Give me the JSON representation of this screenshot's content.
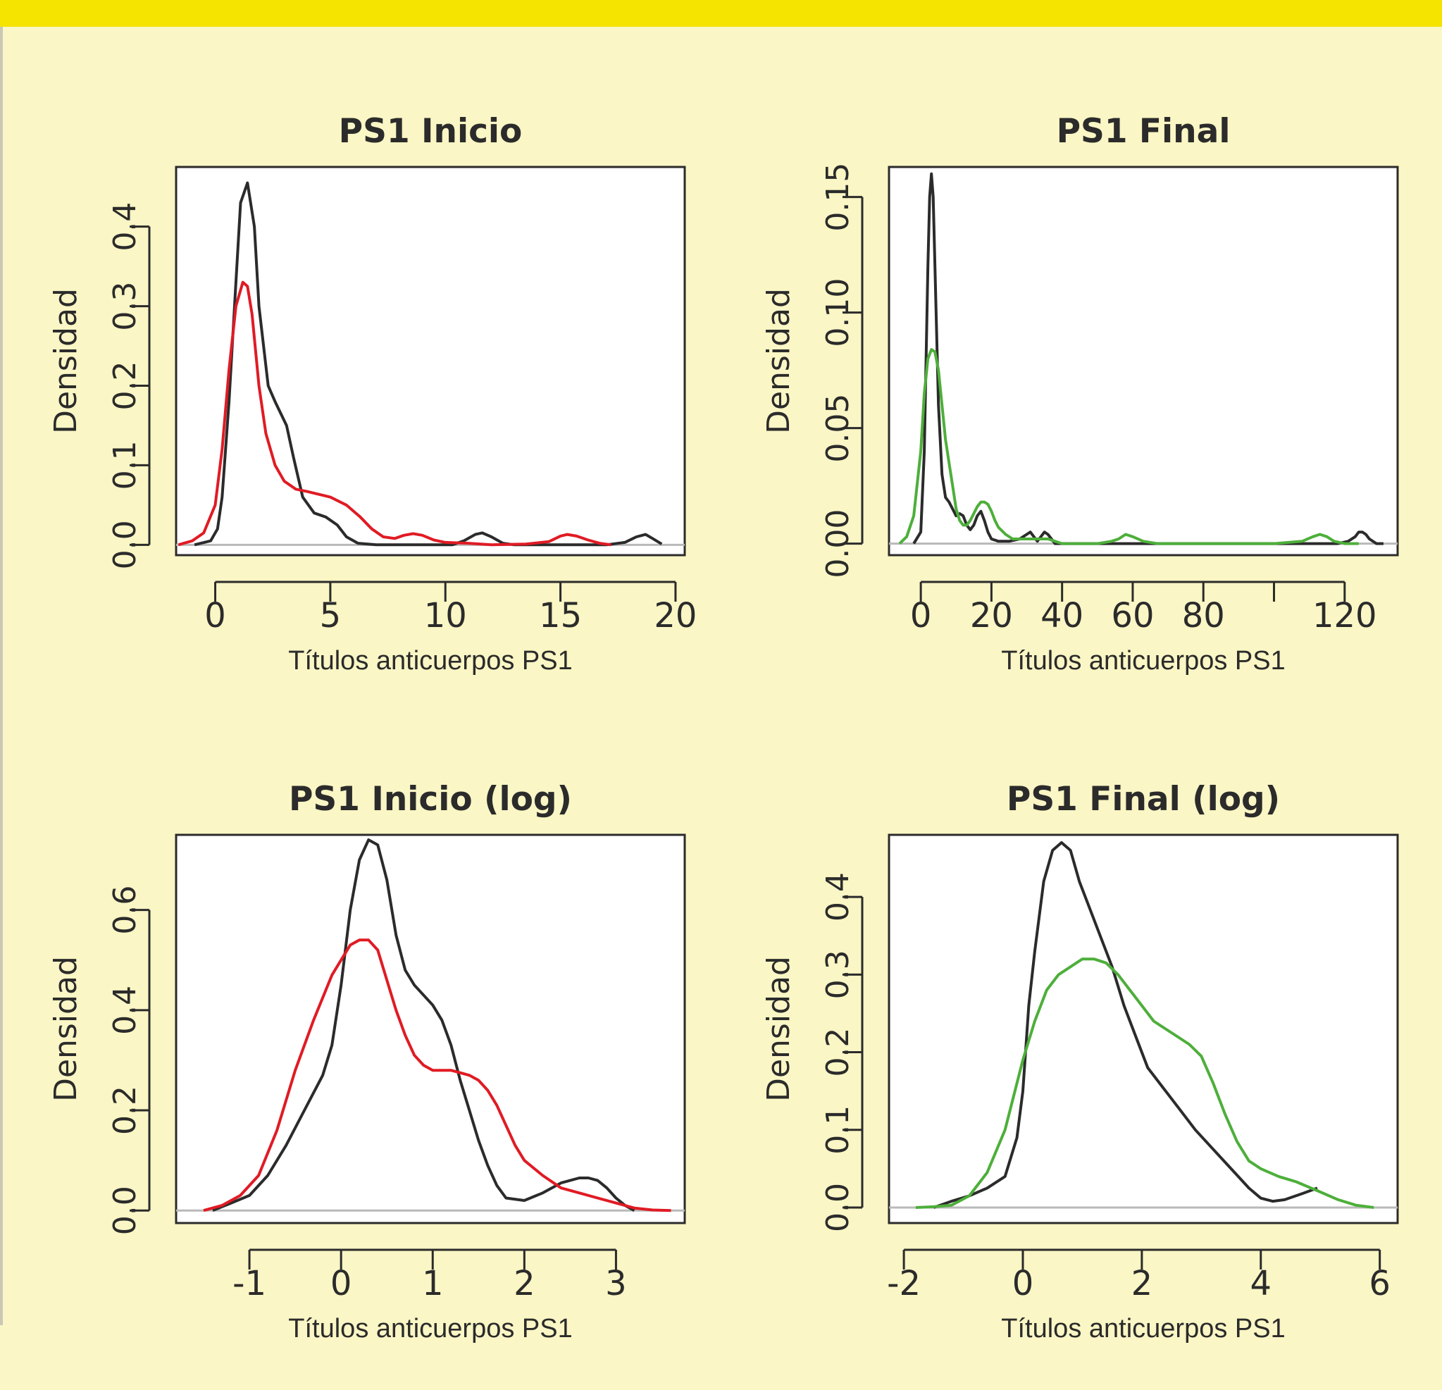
{
  "chart_data": [
    {
      "type": "line",
      "title": "PS1 Inicio",
      "xlabel": "Títulos anticuerpos PS1",
      "ylabel": "Densidad",
      "xlim": [
        -1.7,
        20.4
      ],
      "ylim": [
        -0.013,
        0.475
      ],
      "xticks": [
        0,
        5,
        10,
        15,
        20
      ],
      "xtick_labels": [
        "0",
        "5",
        "10",
        "15",
        "20"
      ],
      "yticks": [
        0.0,
        0.1,
        0.2,
        0.3,
        0.4
      ],
      "ytick_labels": [
        "0.0",
        "0.1",
        "0.2",
        "0.3",
        "0.4"
      ],
      "baseline": 0,
      "grid": false,
      "series": [
        {
          "color": "#2b2b2b",
          "x": [
            -0.9,
            -0.2,
            0.1,
            0.3,
            0.6,
            0.9,
            1.1,
            1.4,
            1.7,
            1.9,
            2.3,
            2.6,
            3.1,
            3.4,
            3.8,
            4.3,
            4.8,
            5.3,
            5.7,
            6.2,
            7.0,
            8.0,
            9.5,
            10.3,
            10.8,
            11.3,
            11.6,
            12.0,
            12.5,
            13.0,
            14.0,
            15.0,
            16.0,
            17.0,
            17.8,
            18.3,
            18.7,
            19.0,
            19.4
          ],
          "y": [
            0.0,
            0.005,
            0.02,
            0.06,
            0.18,
            0.33,
            0.43,
            0.455,
            0.4,
            0.3,
            0.2,
            0.18,
            0.15,
            0.11,
            0.06,
            0.04,
            0.035,
            0.025,
            0.01,
            0.002,
            0.0,
            0.0,
            0.0,
            0.0,
            0.005,
            0.013,
            0.015,
            0.01,
            0.002,
            0.0,
            0.0,
            0.0,
            0.0,
            0.0,
            0.003,
            0.01,
            0.013,
            0.008,
            0.001
          ]
        },
        {
          "color": "#e01b24",
          "x": [
            -1.6,
            -1.0,
            -0.5,
            0.0,
            0.3,
            0.6,
            0.9,
            1.2,
            1.4,
            1.6,
            1.9,
            2.2,
            2.6,
            3.0,
            3.5,
            4.0,
            5.0,
            5.7,
            6.3,
            6.8,
            7.3,
            7.8,
            8.2,
            8.6,
            9.0,
            9.5,
            10.0,
            11.0,
            12.0,
            13.5,
            14.5,
            15.0,
            15.3,
            15.7,
            16.2,
            16.7,
            17.2
          ],
          "y": [
            0.0,
            0.005,
            0.015,
            0.05,
            0.12,
            0.22,
            0.3,
            0.33,
            0.325,
            0.29,
            0.2,
            0.14,
            0.1,
            0.08,
            0.07,
            0.067,
            0.06,
            0.05,
            0.035,
            0.02,
            0.01,
            0.008,
            0.012,
            0.014,
            0.012,
            0.006,
            0.003,
            0.002,
            0.0,
            0.001,
            0.004,
            0.011,
            0.013,
            0.011,
            0.006,
            0.002,
            0.0
          ]
        }
      ]
    },
    {
      "type": "line",
      "title": "PS1 Final",
      "xlabel": "Títulos anticuerpos PS1",
      "ylabel": "Densidad",
      "xlim": [
        -9,
        135
      ],
      "ylim": [
        -0.005,
        0.163
      ],
      "xticks": [
        0,
        20,
        40,
        60,
        80,
        100,
        120
      ],
      "xtick_labels": [
        "0",
        "20",
        "40",
        "60",
        "80",
        "",
        "120"
      ],
      "yticks": [
        0.0,
        0.05,
        0.1,
        0.15
      ],
      "ytick_labels": [
        "0.00",
        "0.05",
        "0.10",
        "0.15"
      ],
      "baseline": 0,
      "grid": false,
      "series": [
        {
          "color": "#2b2b2b",
          "x": [
            -2,
            0,
            1,
            2,
            2.5,
            3,
            3.5,
            4,
            5,
            6,
            7,
            8,
            9,
            10,
            11,
            12,
            13,
            14,
            15,
            16,
            17,
            18,
            19,
            20,
            22,
            25,
            28,
            30,
            31,
            32,
            33,
            34,
            35,
            36,
            37,
            38,
            40,
            50,
            60,
            80,
            100,
            110,
            118,
            121,
            123,
            124,
            125,
            126,
            127,
            129,
            131
          ],
          "y": [
            0.0,
            0.005,
            0.04,
            0.12,
            0.15,
            0.16,
            0.15,
            0.12,
            0.06,
            0.03,
            0.02,
            0.018,
            0.015,
            0.012,
            0.013,
            0.012,
            0.008,
            0.006,
            0.008,
            0.012,
            0.014,
            0.01,
            0.005,
            0.002,
            0.001,
            0.001,
            0.002,
            0.004,
            0.005,
            0.003,
            0.001,
            0.003,
            0.005,
            0.004,
            0.002,
            0.0,
            0.0,
            0.0,
            0.0,
            0.0,
            0.0,
            0.0,
            0.0,
            0.001,
            0.003,
            0.005,
            0.005,
            0.004,
            0.002,
            0.0,
            0.0
          ]
        },
        {
          "color": "#4daf3a",
          "x": [
            -6,
            -4,
            -2,
            0,
            1,
            2,
            3,
            4,
            5,
            6,
            7,
            8,
            9,
            10,
            11,
            12,
            13,
            14,
            15,
            16,
            17,
            18,
            19,
            20,
            21,
            22,
            24,
            26,
            28,
            30,
            32,
            34,
            36,
            38,
            40,
            45,
            50,
            54,
            56,
            58,
            60,
            63,
            67,
            72,
            80,
            100,
            108,
            111,
            113,
            115,
            117,
            120,
            124
          ],
          "y": [
            0.0,
            0.003,
            0.012,
            0.04,
            0.065,
            0.08,
            0.084,
            0.083,
            0.075,
            0.06,
            0.045,
            0.035,
            0.025,
            0.015,
            0.01,
            0.008,
            0.008,
            0.01,
            0.013,
            0.016,
            0.018,
            0.018,
            0.017,
            0.014,
            0.01,
            0.007,
            0.004,
            0.002,
            0.002,
            0.002,
            0.002,
            0.002,
            0.002,
            0.001,
            0.0,
            0.0,
            0.0,
            0.001,
            0.002,
            0.004,
            0.003,
            0.001,
            0.0,
            0.0,
            0.0,
            0.0,
            0.001,
            0.003,
            0.004,
            0.003,
            0.001,
            0.0,
            0.0
          ]
        }
      ]
    },
    {
      "type": "line",
      "title": "PS1 Inicio (log)",
      "xlabel": "Títulos anticuerpos PS1",
      "ylabel": "Densidad",
      "xlim": [
        -1.8,
        3.75
      ],
      "ylim": [
        -0.025,
        0.75
      ],
      "xticks": [
        -1,
        0,
        1,
        2,
        3
      ],
      "xtick_labels": [
        "-1",
        "0",
        "1",
        "2",
        "3"
      ],
      "yticks": [
        0.0,
        0.2,
        0.4,
        0.6
      ],
      "ytick_labels": [
        "0.0",
        "0.2",
        "0.4",
        "0.6"
      ],
      "baseline": 0,
      "grid": false,
      "series": [
        {
          "color": "#2b2b2b",
          "x": [
            -1.4,
            -1.2,
            -1.0,
            -0.8,
            -0.6,
            -0.4,
            -0.2,
            -0.1,
            0.0,
            0.1,
            0.2,
            0.3,
            0.4,
            0.5,
            0.6,
            0.7,
            0.8,
            1.0,
            1.1,
            1.2,
            1.3,
            1.4,
            1.5,
            1.6,
            1.7,
            1.8,
            2.0,
            2.2,
            2.4,
            2.6,
            2.7,
            2.8,
            2.9,
            3.0,
            3.1,
            3.2
          ],
          "y": [
            0.0,
            0.015,
            0.03,
            0.07,
            0.13,
            0.2,
            0.27,
            0.33,
            0.45,
            0.6,
            0.7,
            0.74,
            0.73,
            0.66,
            0.55,
            0.48,
            0.45,
            0.41,
            0.38,
            0.33,
            0.26,
            0.2,
            0.14,
            0.09,
            0.05,
            0.025,
            0.02,
            0.035,
            0.055,
            0.065,
            0.065,
            0.06,
            0.045,
            0.025,
            0.01,
            0.0
          ]
        },
        {
          "color": "#e01b24",
          "x": [
            -1.5,
            -1.3,
            -1.1,
            -0.9,
            -0.7,
            -0.5,
            -0.3,
            -0.1,
            0.0,
            0.1,
            0.2,
            0.3,
            0.4,
            0.5,
            0.6,
            0.7,
            0.8,
            0.9,
            1.0,
            1.1,
            1.2,
            1.3,
            1.4,
            1.5,
            1.6,
            1.7,
            1.8,
            1.9,
            2.0,
            2.2,
            2.4,
            2.6,
            2.8,
            3.0,
            3.2,
            3.4,
            3.6
          ],
          "y": [
            0.0,
            0.01,
            0.03,
            0.07,
            0.16,
            0.28,
            0.38,
            0.47,
            0.5,
            0.53,
            0.54,
            0.54,
            0.52,
            0.46,
            0.4,
            0.35,
            0.31,
            0.29,
            0.28,
            0.28,
            0.28,
            0.275,
            0.27,
            0.26,
            0.24,
            0.21,
            0.17,
            0.13,
            0.1,
            0.07,
            0.045,
            0.035,
            0.025,
            0.015,
            0.005,
            0.001,
            0.0
          ]
        }
      ]
    },
    {
      "type": "line",
      "title": "PS1 Final (log)",
      "xlabel": "Títulos anticuerpos PS1",
      "ylabel": "Densidad",
      "xlim": [
        -2.25,
        6.3
      ],
      "ylim": [
        -0.02,
        0.48
      ],
      "xticks": [
        -2,
        0,
        2,
        4,
        6
      ],
      "xtick_labels": [
        "-2",
        "0",
        "2",
        "4",
        "6"
      ],
      "yticks": [
        0.0,
        0.1,
        0.2,
        0.3,
        0.4
      ],
      "ytick_labels": [
        "0.0",
        "0.1",
        "0.2",
        "0.3",
        "0.4"
      ],
      "baseline": 0,
      "grid": false,
      "series": [
        {
          "color": "#2b2b2b",
          "x": [
            -1.5,
            -1.2,
            -0.9,
            -0.6,
            -0.3,
            -0.1,
            0.0,
            0.1,
            0.2,
            0.35,
            0.5,
            0.65,
            0.8,
            0.95,
            1.1,
            1.3,
            1.5,
            1.7,
            1.9,
            2.1,
            2.3,
            2.6,
            2.9,
            3.2,
            3.5,
            3.8,
            4.0,
            4.2,
            4.4,
            4.7,
            4.95
          ],
          "y": [
            0.0,
            0.008,
            0.015,
            0.025,
            0.04,
            0.09,
            0.15,
            0.26,
            0.33,
            0.42,
            0.46,
            0.47,
            0.46,
            0.42,
            0.39,
            0.35,
            0.31,
            0.26,
            0.22,
            0.18,
            0.16,
            0.13,
            0.1,
            0.075,
            0.05,
            0.025,
            0.012,
            0.008,
            0.01,
            0.018,
            0.025
          ]
        },
        {
          "color": "#4daf3a",
          "x": [
            -1.8,
            -1.5,
            -1.2,
            -0.9,
            -0.6,
            -0.3,
            0.0,
            0.2,
            0.4,
            0.6,
            0.8,
            1.0,
            1.2,
            1.4,
            1.6,
            1.8,
            2.0,
            2.2,
            2.4,
            2.6,
            2.8,
            3.0,
            3.2,
            3.4,
            3.6,
            3.8,
            4.0,
            4.3,
            4.6,
            5.0,
            5.3,
            5.6,
            5.9
          ],
          "y": [
            0.0,
            0.001,
            0.003,
            0.015,
            0.045,
            0.1,
            0.19,
            0.24,
            0.28,
            0.3,
            0.31,
            0.32,
            0.32,
            0.315,
            0.3,
            0.28,
            0.26,
            0.24,
            0.23,
            0.22,
            0.21,
            0.195,
            0.16,
            0.12,
            0.085,
            0.06,
            0.05,
            0.04,
            0.033,
            0.02,
            0.01,
            0.003,
            0.0
          ]
        }
      ]
    }
  ]
}
